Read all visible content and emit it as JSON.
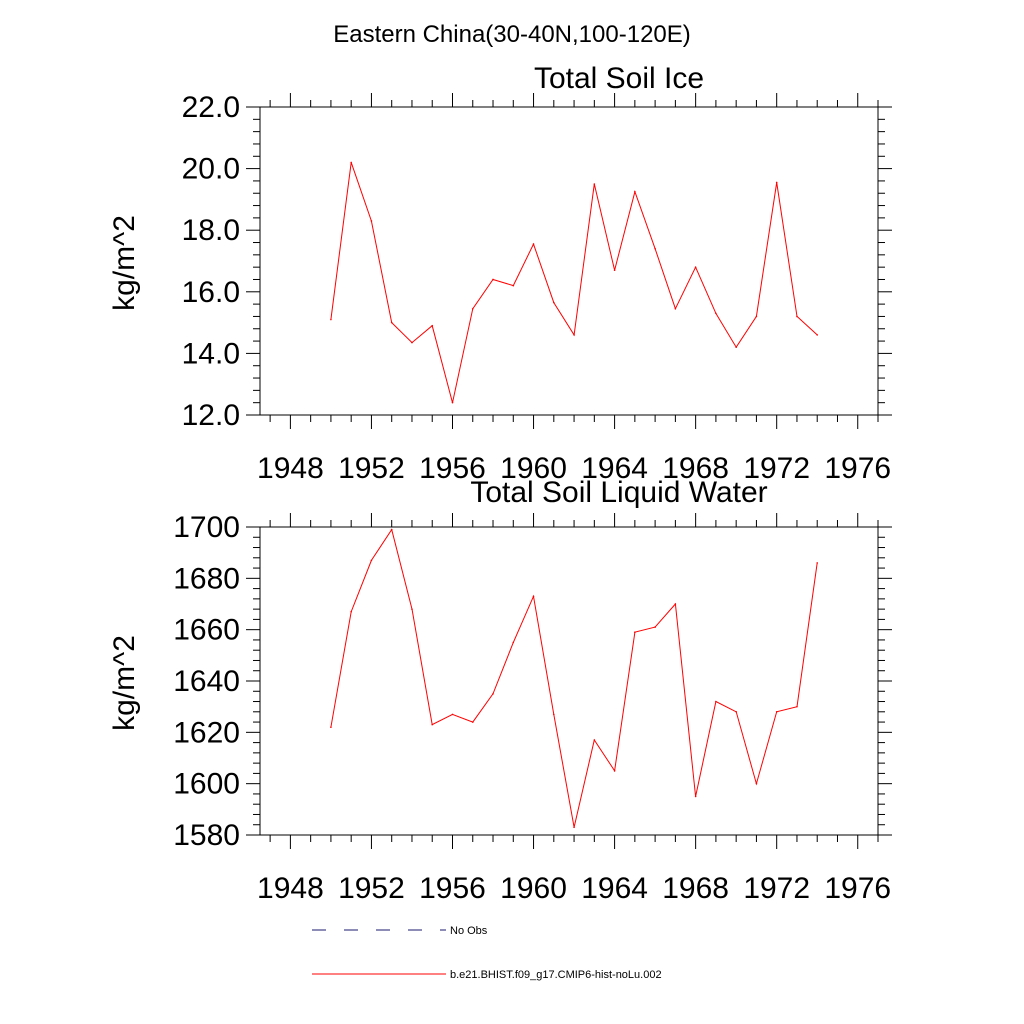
{
  "page_title": "Eastern China(30-40N,100-120E)",
  "chart_data": [
    {
      "type": "line",
      "title": "Total Soil Ice",
      "xlabel": "",
      "ylabel": "kg/m^2",
      "xlim": [
        1946.5,
        1977
      ],
      "ylim": [
        12.0,
        22.0
      ],
      "xticks": [
        "1948",
        "1952",
        "1956",
        "1960",
        "1964",
        "1968",
        "1972",
        "1976"
      ],
      "yticks": [
        "12.0",
        "14.0",
        "16.0",
        "18.0",
        "20.0",
        "22.0"
      ],
      "x": [
        1950,
        1951,
        1952,
        1953,
        1954,
        1955,
        1956,
        1957,
        1958,
        1959,
        1960,
        1961,
        1962,
        1963,
        1964,
        1965,
        1966,
        1967,
        1968,
        1969,
        1970,
        1971,
        1972,
        1973,
        1974
      ],
      "series": [
        {
          "name": "b.e21.BHIST.f09_g17.CMIP6-hist-noLu.002",
          "color": "#ff0000",
          "values": [
            15.1,
            20.2,
            18.3,
            15.0,
            14.35,
            14.9,
            12.4,
            15.45,
            16.4,
            16.2,
            17.55,
            15.65,
            14.6,
            19.5,
            16.7,
            19.25,
            17.4,
            15.45,
            16.8,
            15.3,
            14.2,
            15.2,
            19.55,
            15.2,
            14.6
          ]
        }
      ],
      "grid": false
    },
    {
      "type": "line",
      "title": "Total Soil Liquid Water",
      "xlabel": "",
      "ylabel": "kg/m^2",
      "xlim": [
        1946.5,
        1977
      ],
      "ylim": [
        1580,
        1700
      ],
      "xticks": [
        "1948",
        "1952",
        "1956",
        "1960",
        "1964",
        "1968",
        "1972",
        "1976"
      ],
      "yticks": [
        "1580",
        "1600",
        "1620",
        "1640",
        "1660",
        "1680",
        "1700"
      ],
      "x": [
        1950,
        1951,
        1952,
        1953,
        1954,
        1955,
        1956,
        1957,
        1958,
        1959,
        1960,
        1961,
        1962,
        1963,
        1964,
        1965,
        1966,
        1967,
        1968,
        1969,
        1970,
        1971,
        1972,
        1973,
        1974
      ],
      "series": [
        {
          "name": "b.e21.BHIST.f09_g17.CMIP6-hist-noLu.002",
          "color": "#ff0000",
          "values": [
            1622,
            1667,
            1687,
            1699,
            1668,
            1623,
            1627,
            1624,
            1635,
            1655,
            1673,
            1627,
            1583,
            1617,
            1605,
            1659,
            1661,
            1670,
            1595,
            1632,
            1628,
            1600,
            1628,
            1630,
            1686
          ]
        }
      ],
      "grid": false
    }
  ],
  "legend": [
    {
      "label": "No Obs",
      "style": "dashed",
      "color": "#1a1a6e"
    },
    {
      "label": "b.e21.BHIST.f09_g17.CMIP6-hist-noLu.002",
      "style": "solid",
      "color": "#ff0000"
    }
  ]
}
